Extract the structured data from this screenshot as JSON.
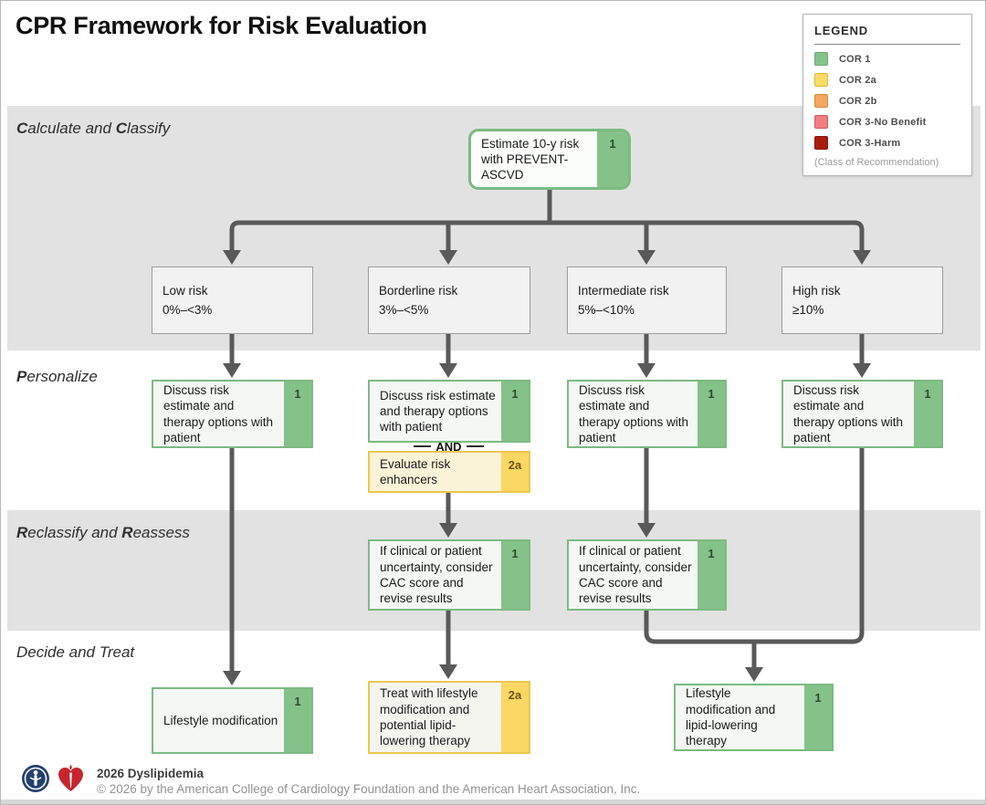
{
  "title": "CPR Framework for Risk Evaluation",
  "legend": {
    "title": "LEGEND",
    "items": [
      {
        "label": "COR 1",
        "color": "#85c28a",
        "border": "#6aa973"
      },
      {
        "label": "COR 2a",
        "color": "#fcdc66",
        "border": "#dfb83f"
      },
      {
        "label": "COR 2b",
        "color": "#f4a763",
        "border": "#d88a3f"
      },
      {
        "label": "COR 3-No Benefit",
        "color": "#ee7f83",
        "border": "#d4585e"
      },
      {
        "label": "COR 3-Harm",
        "color": "#a81c10",
        "border": "#8c1208"
      }
    ],
    "note": "(Class of Recommendation)"
  },
  "bands": {
    "calculate": {
      "segments": [
        {
          "t": "C",
          "b": true
        },
        {
          "t": "alculate and ",
          "b": false
        },
        {
          "t": "C",
          "b": true
        },
        {
          "t": "lassify",
          "b": false
        }
      ]
    },
    "personalize": {
      "segments": [
        {
          "t": "P",
          "b": true
        },
        {
          "t": "ersonalize",
          "b": false
        }
      ]
    },
    "reclassify": {
      "segments": [
        {
          "t": "R",
          "b": true
        },
        {
          "t": "eclassify and ",
          "b": false
        },
        {
          "t": "R",
          "b": true
        },
        {
          "t": "eassess",
          "b": false
        }
      ]
    },
    "decide": {
      "segments": [
        {
          "t": "Decide and Treat",
          "b": false
        }
      ]
    }
  },
  "nodes": {
    "estimate": {
      "text": "Estimate 10-y risk with PREVENT-ASCVD",
      "badge": "1"
    },
    "risk_low": {
      "title": "Low risk",
      "range": "0%–<3%"
    },
    "risk_borderline": {
      "title": "Borderline risk",
      "range": "3%–<5%"
    },
    "risk_intermediate": {
      "title": "Intermediate risk",
      "range": "5%–<10%"
    },
    "risk_high": {
      "title": "High risk",
      "range": "≥10%"
    },
    "discuss": {
      "text": "Discuss risk estimate and therapy options with patient",
      "badge": "1"
    },
    "evaluate": {
      "text": "Evaluate risk enhancers",
      "badge": "2a"
    },
    "cac": {
      "text": "If clinical or patient uncertainty, consider CAC score and revise results",
      "badge": "1"
    },
    "lifestyle": {
      "text": "Lifestyle modification",
      "badge": "1"
    },
    "treat": {
      "text": "Treat with lifestyle modification and potential lipid-lowering therapy",
      "badge": "2a"
    },
    "lifestyle_lipid": {
      "text": "Lifestyle modification and lipid-lowering therapy",
      "badge": "1"
    }
  },
  "connector": {
    "and_label": "AND"
  },
  "footer": {
    "program": "2026 Dyslipidemia",
    "copyright": "© 2026 by the American College of Cardiology Foundation and the American Heart Association, Inc."
  },
  "colors": {
    "cor_1": "#85c28a",
    "cor_2a": "#fbd763",
    "cor_2b": "#f4a763",
    "cor_3_no_benefit": "#ee7f83",
    "cor_3_harm": "#a81c10",
    "arrow": "#595959"
  }
}
